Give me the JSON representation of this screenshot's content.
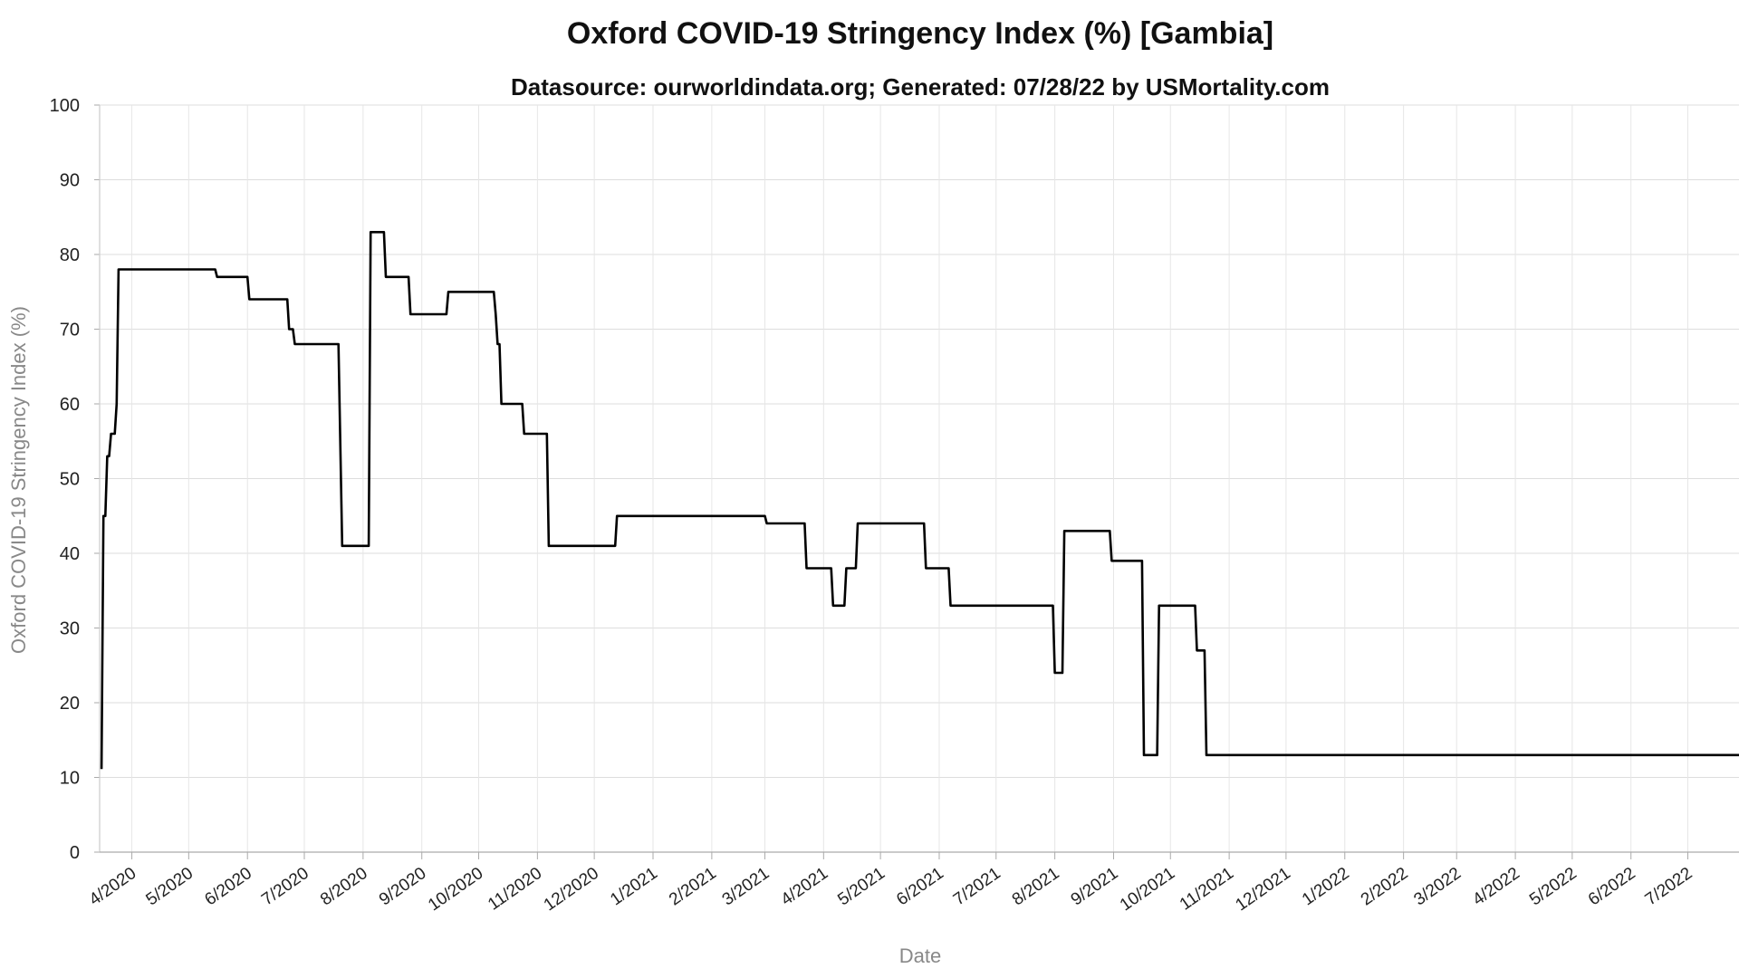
{
  "chart_data": {
    "type": "line",
    "title": "Oxford COVID-19 Stringency Index (%) [Gambia]",
    "subtitle": "Datasource: ourworldindata.org; Generated: 07/28/22 by USMortality.com",
    "xlabel": "Date",
    "ylabel": "Oxford COVID-19 Stringency Index (%)",
    "ylim": [
      0,
      100
    ],
    "yticks": [
      0,
      10,
      20,
      30,
      40,
      50,
      60,
      70,
      80,
      90,
      100
    ],
    "xlim": [
      "2020-03-15",
      "2022-07-28"
    ],
    "xticks": [
      {
        "date": "2020-04-01",
        "label": "4/2020"
      },
      {
        "date": "2020-05-01",
        "label": "5/2020"
      },
      {
        "date": "2020-06-01",
        "label": "6/2020"
      },
      {
        "date": "2020-07-01",
        "label": "7/2020"
      },
      {
        "date": "2020-08-01",
        "label": "8/2020"
      },
      {
        "date": "2020-09-01",
        "label": "9/2020"
      },
      {
        "date": "2020-10-01",
        "label": "10/2020"
      },
      {
        "date": "2020-11-01",
        "label": "11/2020"
      },
      {
        "date": "2020-12-01",
        "label": "12/2020"
      },
      {
        "date": "2021-01-01",
        "label": "1/2021"
      },
      {
        "date": "2021-02-01",
        "label": "2/2021"
      },
      {
        "date": "2021-03-01",
        "label": "3/2021"
      },
      {
        "date": "2021-04-01",
        "label": "4/2021"
      },
      {
        "date": "2021-05-01",
        "label": "5/2021"
      },
      {
        "date": "2021-06-01",
        "label": "6/2021"
      },
      {
        "date": "2021-07-01",
        "label": "7/2021"
      },
      {
        "date": "2021-08-01",
        "label": "8/2021"
      },
      {
        "date": "2021-09-01",
        "label": "9/2021"
      },
      {
        "date": "2021-10-01",
        "label": "10/2021"
      },
      {
        "date": "2021-11-01",
        "label": "11/2021"
      },
      {
        "date": "2021-12-01",
        "label": "12/2021"
      },
      {
        "date": "2022-01-01",
        "label": "1/2022"
      },
      {
        "date": "2022-02-01",
        "label": "2/2022"
      },
      {
        "date": "2022-03-01",
        "label": "3/2022"
      },
      {
        "date": "2022-04-01",
        "label": "4/2022"
      },
      {
        "date": "2022-05-01",
        "label": "5/2022"
      },
      {
        "date": "2022-06-01",
        "label": "6/2022"
      },
      {
        "date": "2022-07-01",
        "label": "7/2022"
      }
    ],
    "grid": true,
    "line_color": "#000000",
    "series": [
      {
        "points": [
          [
            "2020-03-16",
            11.11
          ],
          [
            "2020-03-17",
            45
          ],
          [
            "2020-03-18",
            45
          ],
          [
            "2020-03-19",
            53
          ],
          [
            "2020-03-20",
            53
          ],
          [
            "2020-03-21",
            56
          ],
          [
            "2020-03-23",
            56
          ],
          [
            "2020-03-24",
            60
          ],
          [
            "2020-03-25",
            78
          ],
          [
            "2020-05-15",
            78
          ],
          [
            "2020-05-16",
            77
          ],
          [
            "2020-06-01",
            77
          ],
          [
            "2020-06-02",
            74
          ],
          [
            "2020-06-22",
            74
          ],
          [
            "2020-06-23",
            70
          ],
          [
            "2020-06-25",
            70
          ],
          [
            "2020-06-26",
            68
          ],
          [
            "2020-07-19",
            68
          ],
          [
            "2020-07-21",
            41
          ],
          [
            "2020-08-04",
            41
          ],
          [
            "2020-08-05",
            83
          ],
          [
            "2020-08-12",
            83
          ],
          [
            "2020-08-13",
            77
          ],
          [
            "2020-08-25",
            77
          ],
          [
            "2020-08-26",
            72
          ],
          [
            "2020-09-14",
            72
          ],
          [
            "2020-09-15",
            75
          ],
          [
            "2020-10-09",
            75
          ],
          [
            "2020-10-10",
            72
          ],
          [
            "2020-10-11",
            68
          ],
          [
            "2020-10-12",
            68
          ],
          [
            "2020-10-13",
            60
          ],
          [
            "2020-10-24",
            60
          ],
          [
            "2020-10-25",
            56
          ],
          [
            "2020-11-06",
            56
          ],
          [
            "2020-11-07",
            41
          ],
          [
            "2020-12-12",
            41
          ],
          [
            "2020-12-13",
            45
          ],
          [
            "2021-03-01",
            45
          ],
          [
            "2021-03-02",
            44
          ],
          [
            "2021-03-22",
            44
          ],
          [
            "2021-03-23",
            38
          ],
          [
            "2021-04-05",
            38
          ],
          [
            "2021-04-06",
            33
          ],
          [
            "2021-04-12",
            33
          ],
          [
            "2021-04-13",
            38
          ],
          [
            "2021-04-18",
            38
          ],
          [
            "2021-04-19",
            44
          ],
          [
            "2021-05-24",
            44
          ],
          [
            "2021-05-25",
            38
          ],
          [
            "2021-06-06",
            38
          ],
          [
            "2021-06-07",
            33
          ],
          [
            "2021-07-31",
            33
          ],
          [
            "2021-08-01",
            24
          ],
          [
            "2021-08-05",
            24
          ],
          [
            "2021-08-06",
            43
          ],
          [
            "2021-08-30",
            43
          ],
          [
            "2021-08-31",
            39
          ],
          [
            "2021-09-16",
            39
          ],
          [
            "2021-09-17",
            13
          ],
          [
            "2021-09-24",
            13
          ],
          [
            "2021-09-25",
            33
          ],
          [
            "2021-10-14",
            33
          ],
          [
            "2021-10-15",
            27
          ],
          [
            "2021-10-19",
            27
          ],
          [
            "2021-10-20",
            13
          ],
          [
            "2022-07-28",
            13
          ]
        ]
      }
    ]
  }
}
